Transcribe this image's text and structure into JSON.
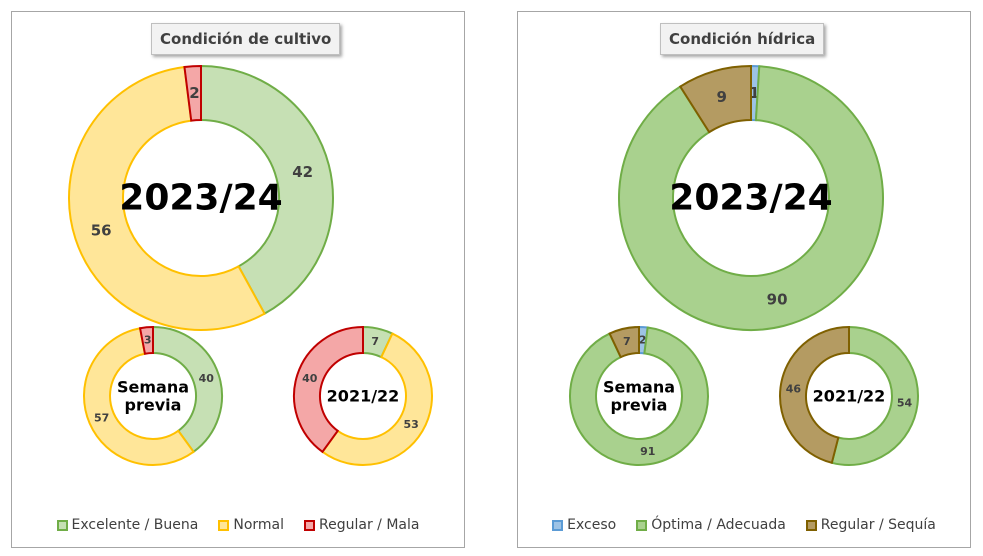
{
  "crop": {
    "title": "Condición  de cultivo",
    "legend": [
      {
        "label": "Excelente / Buena",
        "fill": "#c6e0b4",
        "stroke": "#70ad47"
      },
      {
        "label": "Normal",
        "fill": "#ffe699",
        "stroke": "#ffc000"
      },
      {
        "label": "Regular / Mala",
        "fill": "#f4a7a7",
        "stroke": "#c00000"
      }
    ]
  },
  "water": {
    "title": "Condición  hídrica",
    "legend": [
      {
        "label": "Exceso",
        "fill": "#9dc3e6",
        "stroke": "#5b9bd5"
      },
      {
        "label": "Óptima / Adecuada",
        "fill": "#a9d18e",
        "stroke": "#70ad47"
      },
      {
        "label": "Regular / Sequía",
        "fill": "#b49b62",
        "stroke": "#7f6000"
      }
    ]
  },
  "chart_data": [
    {
      "type": "donut",
      "panel": "crop",
      "center_label": "2023/24",
      "categories": [
        "Excelente / Buena",
        "Normal",
        "Regular / Mala"
      ],
      "values": [
        42,
        56,
        2
      ],
      "colors": [
        "#c6e0b4",
        "#ffe699",
        "#f4a7a7"
      ],
      "strokes": [
        "#70ad47",
        "#ffc000",
        "#c00000"
      ]
    },
    {
      "type": "donut",
      "panel": "crop",
      "center_label": "Semana\nprevia",
      "categories": [
        "Excelente / Buena",
        "Normal",
        "Regular / Mala"
      ],
      "values": [
        40,
        57,
        3
      ],
      "colors": [
        "#c6e0b4",
        "#ffe699",
        "#f4a7a7"
      ],
      "strokes": [
        "#70ad47",
        "#ffc000",
        "#c00000"
      ]
    },
    {
      "type": "donut",
      "panel": "crop",
      "center_label": "2021/22",
      "categories": [
        "Excelente / Buena",
        "Normal",
        "Regular / Mala"
      ],
      "values": [
        7,
        53,
        40
      ],
      "colors": [
        "#c6e0b4",
        "#ffe699",
        "#f4a7a7"
      ],
      "strokes": [
        "#70ad47",
        "#ffc000",
        "#c00000"
      ]
    },
    {
      "type": "donut",
      "panel": "water",
      "center_label": "2023/24",
      "categories": [
        "Exceso",
        "Óptima / Adecuada",
        "Regular / Sequía"
      ],
      "values": [
        1,
        90,
        9
      ],
      "colors": [
        "#9dc3e6",
        "#a9d18e",
        "#b49b62"
      ],
      "strokes": [
        "#5b9bd5",
        "#70ad47",
        "#7f6000"
      ]
    },
    {
      "type": "donut",
      "panel": "water",
      "center_label": "Semana\nprevia",
      "categories": [
        "Exceso",
        "Óptima / Adecuada",
        "Regular / Sequía"
      ],
      "values": [
        2,
        91,
        7
      ],
      "colors": [
        "#9dc3e6",
        "#a9d18e",
        "#b49b62"
      ],
      "strokes": [
        "#5b9bd5",
        "#70ad47",
        "#7f6000"
      ]
    },
    {
      "type": "donut",
      "panel": "water",
      "center_label": "2021/22",
      "categories": [
        "Exceso",
        "Óptima / Adecuada",
        "Regular / Sequía"
      ],
      "values": [
        0,
        54,
        46
      ],
      "colors": [
        "#9dc3e6",
        "#a9d18e",
        "#b49b62"
      ],
      "strokes": [
        "#5b9bd5",
        "#70ad47",
        "#7f6000"
      ]
    }
  ]
}
